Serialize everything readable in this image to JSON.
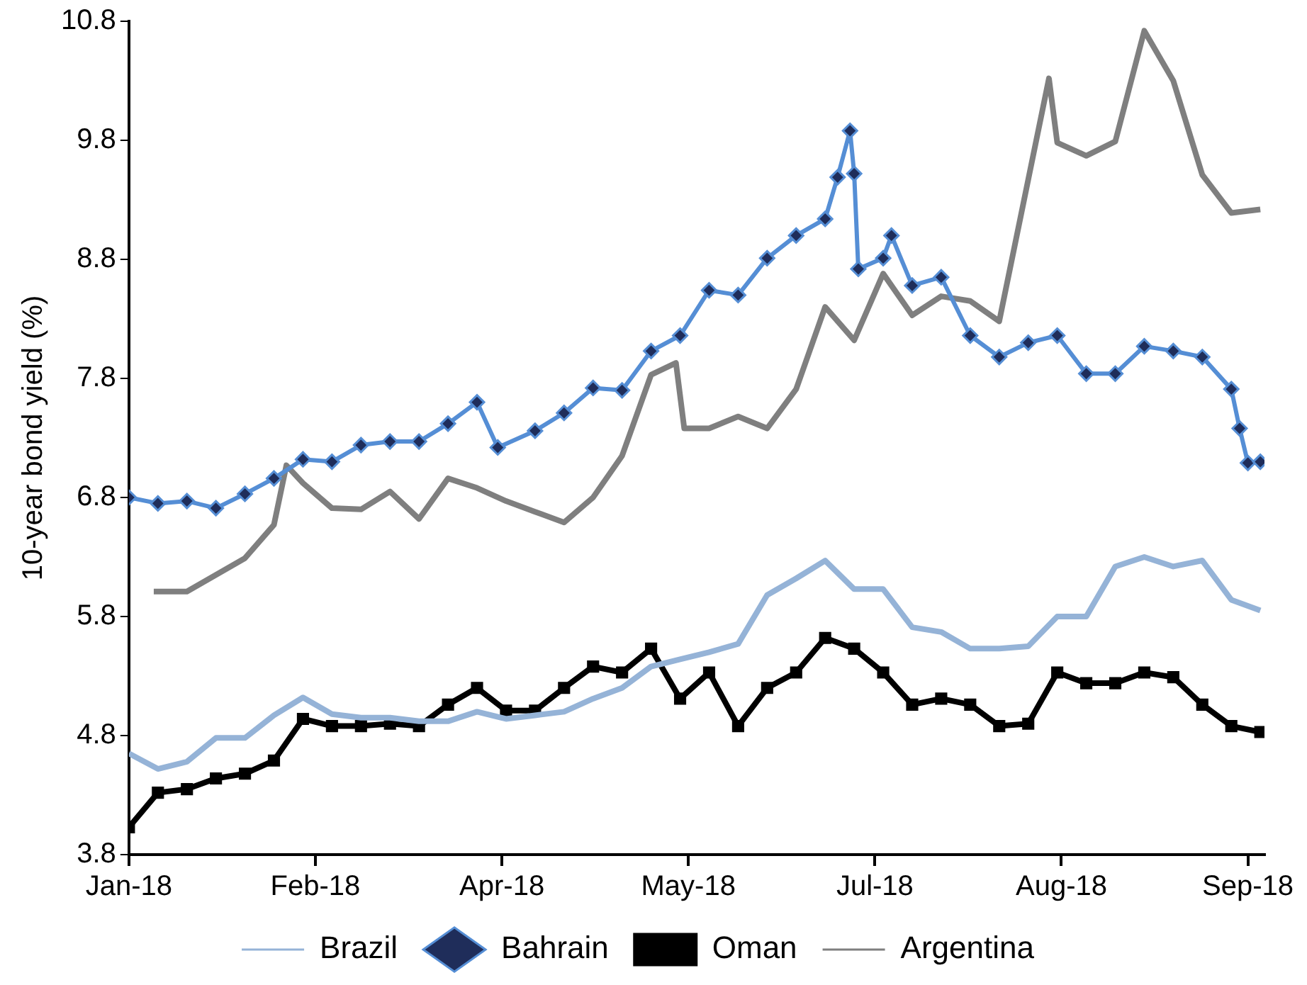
{
  "chart_data": {
    "type": "line",
    "ylabel": "10-year bond yield (%)",
    "x": [
      "2018-01-02",
      "2018-01-09",
      "2018-01-16",
      "2018-01-23",
      "2018-01-30",
      "2018-02-06",
      "2018-02-13",
      "2018-02-20",
      "2018-02-27",
      "2018-03-06",
      "2018-03-13",
      "2018-03-20",
      "2018-03-27",
      "2018-04-03",
      "2018-04-10",
      "2018-04-17",
      "2018-04-24",
      "2018-05-01",
      "2018-05-08",
      "2018-05-15",
      "2018-05-22",
      "2018-05-29",
      "2018-06-05",
      "2018-06-12",
      "2018-06-19",
      "2018-06-26",
      "2018-07-03",
      "2018-07-10",
      "2018-07-17",
      "2018-07-24",
      "2018-07-31",
      "2018-08-07",
      "2018-08-14",
      "2018-08-21",
      "2018-08-28",
      "2018-09-04",
      "2018-09-11",
      "2018-09-18",
      "2018-09-25",
      "2018-10-02"
    ],
    "series": [
      {
        "name": "Brazil",
        "color": "#95b3d7",
        "marker": "none",
        "values": [
          4.65,
          4.52,
          4.58,
          4.78,
          4.78,
          4.97,
          5.12,
          4.98,
          4.95,
          4.95,
          4.92,
          4.92,
          5.0,
          4.94,
          4.97,
          5.0,
          5.11,
          5.2,
          5.38,
          5.44,
          5.5,
          5.57,
          5.98,
          6.12,
          6.27,
          6.03,
          6.03,
          5.71,
          5.67,
          5.53,
          5.53,
          5.55,
          5.8,
          5.8,
          6.22,
          6.3,
          6.22,
          6.27,
          5.94,
          5.85
        ]
      },
      {
        "name": "Bahrain",
        "color": "#558ed5",
        "marker": "diamond",
        "x": [
          "2018-01-02",
          "2018-01-09",
          "2018-01-16",
          "2018-01-23",
          "2018-01-30",
          "2018-02-06",
          "2018-02-13",
          "2018-02-20",
          "2018-02-27",
          "2018-03-06",
          "2018-03-13",
          "2018-03-20",
          "2018-03-27",
          "2018-04-01",
          "2018-04-10",
          "2018-04-17",
          "2018-04-24",
          "2018-05-01",
          "2018-05-08",
          "2018-05-15",
          "2018-05-22",
          "2018-05-29",
          "2018-06-05",
          "2018-06-12",
          "2018-06-19",
          "2018-06-22",
          "2018-06-25",
          "2018-06-26",
          "2018-06-27",
          "2018-07-03",
          "2018-07-05",
          "2018-07-10",
          "2018-07-17",
          "2018-07-24",
          "2018-07-31",
          "2018-08-07",
          "2018-08-14",
          "2018-08-21",
          "2018-08-28",
          "2018-09-04",
          "2018-09-11",
          "2018-09-18",
          "2018-09-25",
          "2018-09-27",
          "2018-09-29",
          "2018-10-02"
        ],
        "values": [
          6.8,
          6.75,
          6.77,
          6.71,
          6.83,
          6.96,
          7.12,
          7.1,
          7.24,
          7.27,
          7.27,
          7.42,
          7.6,
          7.22,
          7.36,
          7.51,
          7.72,
          7.7,
          8.03,
          8.16,
          8.54,
          8.5,
          8.81,
          9.0,
          9.14,
          9.49,
          9.88,
          9.52,
          8.72,
          8.81,
          9.0,
          8.58,
          8.65,
          8.16,
          7.98,
          8.1,
          8.16,
          7.84,
          7.84,
          8.07,
          8.03,
          7.98,
          7.71,
          7.38,
          7.09,
          7.1
        ]
      },
      {
        "name": "Oman",
        "color": "#000000",
        "marker": "square",
        "values": [
          4.03,
          4.32,
          4.35,
          4.44,
          4.48,
          4.59,
          4.94,
          4.88,
          4.88,
          4.9,
          4.88,
          5.06,
          5.2,
          5.01,
          5.01,
          5.2,
          5.38,
          5.33,
          5.53,
          5.11,
          5.33,
          4.88,
          5.2,
          5.33,
          5.62,
          5.53,
          5.33,
          5.06,
          5.11,
          5.06,
          4.88,
          4.9,
          5.33,
          5.24,
          5.24,
          5.33,
          5.29,
          5.06,
          4.88,
          4.83
        ]
      },
      {
        "name": "Argentina",
        "color": "#7f7f7f",
        "marker": "none",
        "x": [
          "2018-01-08",
          "2018-01-16",
          "2018-01-23",
          "2018-01-30",
          "2018-02-06",
          "2018-02-09",
          "2018-02-13",
          "2018-02-20",
          "2018-02-27",
          "2018-03-06",
          "2018-03-13",
          "2018-03-20",
          "2018-03-27",
          "2018-04-03",
          "2018-04-10",
          "2018-04-17",
          "2018-04-24",
          "2018-05-01",
          "2018-05-08",
          "2018-05-14",
          "2018-05-16",
          "2018-05-22",
          "2018-05-29",
          "2018-06-05",
          "2018-06-12",
          "2018-06-19",
          "2018-06-26",
          "2018-07-03",
          "2018-07-10",
          "2018-07-17",
          "2018-07-24",
          "2018-07-31",
          "2018-08-12",
          "2018-08-14",
          "2018-08-21",
          "2018-08-28",
          "2018-09-04",
          "2018-09-11",
          "2018-09-18",
          "2018-09-25",
          "2018-10-02"
        ],
        "values": [
          6.01,
          6.01,
          6.15,
          6.29,
          6.57,
          7.07,
          6.92,
          6.71,
          6.7,
          6.85,
          6.62,
          6.96,
          6.88,
          6.77,
          6.68,
          6.59,
          6.8,
          7.15,
          7.83,
          7.93,
          7.38,
          7.38,
          7.48,
          7.38,
          7.71,
          8.4,
          8.12,
          8.68,
          8.33,
          8.49,
          8.45,
          8.28,
          10.32,
          9.78,
          9.67,
          9.79,
          10.72,
          10.3,
          9.51,
          9.19,
          9.22
        ]
      }
    ],
    "xlim": [
      "2018-01-02",
      "2018-10-03"
    ],
    "xticks": [
      {
        "value": "2018-01-02",
        "label": "Jan-18"
      },
      {
        "value": "2018-02-16",
        "label": "Feb-18"
      },
      {
        "value": "2018-04-02",
        "label": "Apr-18"
      },
      {
        "value": "2018-05-17",
        "label": "May-18"
      },
      {
        "value": "2018-07-01",
        "label": "Jul-18"
      },
      {
        "value": "2018-08-15",
        "label": "Aug-18"
      },
      {
        "value": "2018-09-29",
        "label": "Sep-18"
      }
    ],
    "ylim": [
      3.8,
      10.8
    ],
    "yticks": [
      3.8,
      4.8,
      5.8,
      6.8,
      7.8,
      8.8,
      9.8,
      10.8
    ],
    "grid": false,
    "legend": "bottom",
    "line_style": "solid"
  }
}
